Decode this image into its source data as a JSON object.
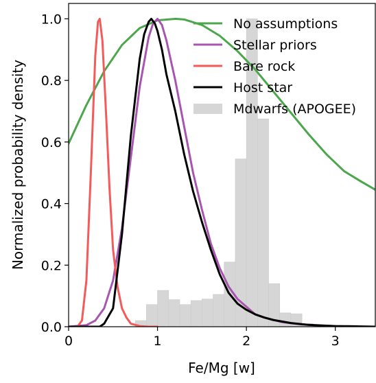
{
  "chart_data": {
    "type": "line",
    "xlabel": "Fe/Mg [w]",
    "ylabel": "Normalized probability density",
    "xlim": [
      0,
      3.45
    ],
    "ylim": [
      0,
      1.05
    ],
    "xticks": [
      0,
      1,
      2,
      3
    ],
    "xtick_labels": [
      "0",
      "1",
      "2",
      "3"
    ],
    "yticks": [
      0.0,
      0.2,
      0.4,
      0.6,
      0.8,
      1.0
    ],
    "ytick_labels": [
      "0.0",
      "0.2",
      "0.4",
      "0.6",
      "0.8",
      "1.0"
    ],
    "grid": false,
    "legend_position": "top-right",
    "series": [
      {
        "name": "No assumptions",
        "color": "#4ca64c",
        "x": [
          0.0,
          0.2,
          0.4,
          0.6,
          0.8,
          1.0,
          1.2,
          1.3,
          1.5,
          1.7,
          1.9,
          2.1,
          2.3,
          2.5,
          2.7,
          2.9,
          3.1,
          3.3,
          3.45
        ],
        "y": [
          0.595,
          0.72,
          0.83,
          0.915,
          0.97,
          0.995,
          1.0,
          0.998,
          0.98,
          0.945,
          0.895,
          0.835,
          0.765,
          0.695,
          0.625,
          0.56,
          0.505,
          0.47,
          0.445
        ]
      },
      {
        "name": "Stellar priors",
        "color": "#a855b0",
        "x": [
          0.0,
          0.2,
          0.3,
          0.4,
          0.5,
          0.6,
          0.7,
          0.8,
          0.9,
          0.95,
          1.0,
          1.05,
          1.1,
          1.2,
          1.3,
          1.4,
          1.5,
          1.6,
          1.7,
          1.8,
          1.9,
          2.0,
          2.1,
          2.2,
          2.4,
          2.6,
          2.8,
          3.0,
          3.2,
          3.45
        ],
        "y": [
          0.0,
          0.005,
          0.02,
          0.06,
          0.15,
          0.32,
          0.55,
          0.78,
          0.94,
          0.985,
          1.0,
          0.98,
          0.93,
          0.8,
          0.65,
          0.5,
          0.38,
          0.27,
          0.19,
          0.13,
          0.09,
          0.065,
          0.04,
          0.03,
          0.015,
          0.008,
          0.004,
          0.002,
          0.001,
          0.0
        ]
      },
      {
        "name": "Bare rock",
        "color": "#f55a5a",
        "x": [
          0.0,
          0.1,
          0.15,
          0.2,
          0.25,
          0.3,
          0.33,
          0.35,
          0.38,
          0.42,
          0.46,
          0.5,
          0.55,
          0.6,
          0.65,
          0.7,
          0.8,
          0.9,
          1.0
        ],
        "y": [
          0.0,
          0.0,
          0.02,
          0.15,
          0.5,
          0.88,
          0.99,
          1.0,
          0.93,
          0.7,
          0.45,
          0.25,
          0.13,
          0.06,
          0.03,
          0.01,
          0.002,
          0.0,
          0.0
        ]
      },
      {
        "name": "Host star",
        "color": "#000000",
        "x": [
          0.0,
          0.2,
          0.3,
          0.35,
          0.4,
          0.5,
          0.6,
          0.7,
          0.8,
          0.85,
          0.9,
          0.93,
          0.97,
          1.0,
          1.05,
          1.1,
          1.2,
          1.3,
          1.4,
          1.5,
          1.6,
          1.7,
          1.8,
          1.9,
          2.0,
          2.1,
          2.2,
          2.3,
          2.5,
          2.7,
          3.0,
          3.45
        ],
        "y": [
          0.0,
          0.0,
          0.0,
          0.0,
          0.01,
          0.06,
          0.3,
          0.62,
          0.87,
          0.95,
          0.99,
          1.0,
          0.985,
          0.96,
          0.9,
          0.82,
          0.7,
          0.56,
          0.44,
          0.34,
          0.25,
          0.17,
          0.11,
          0.075,
          0.055,
          0.04,
          0.03,
          0.022,
          0.012,
          0.006,
          0.002,
          0.0
        ]
      }
    ],
    "histogram": {
      "name": "Mdwarfs (APOGEE)",
      "color": "#d6d6d6",
      "bin_edges": [
        0.75,
        0.875,
        1.0,
        1.125,
        1.25,
        1.375,
        1.5,
        1.625,
        1.75,
        1.875,
        2.0,
        2.125,
        2.25,
        2.375,
        2.5,
        2.625,
        2.75,
        2.875,
        3.0,
        3.125,
        3.25
      ],
      "values": [
        0.02,
        0.072,
        0.118,
        0.088,
        0.072,
        0.085,
        0.09,
        0.105,
        0.21,
        0.545,
        1.0,
        0.675,
        0.14,
        0.045,
        0.042,
        0.01,
        0.005,
        0.003,
        0.002,
        0.005
      ]
    }
  }
}
